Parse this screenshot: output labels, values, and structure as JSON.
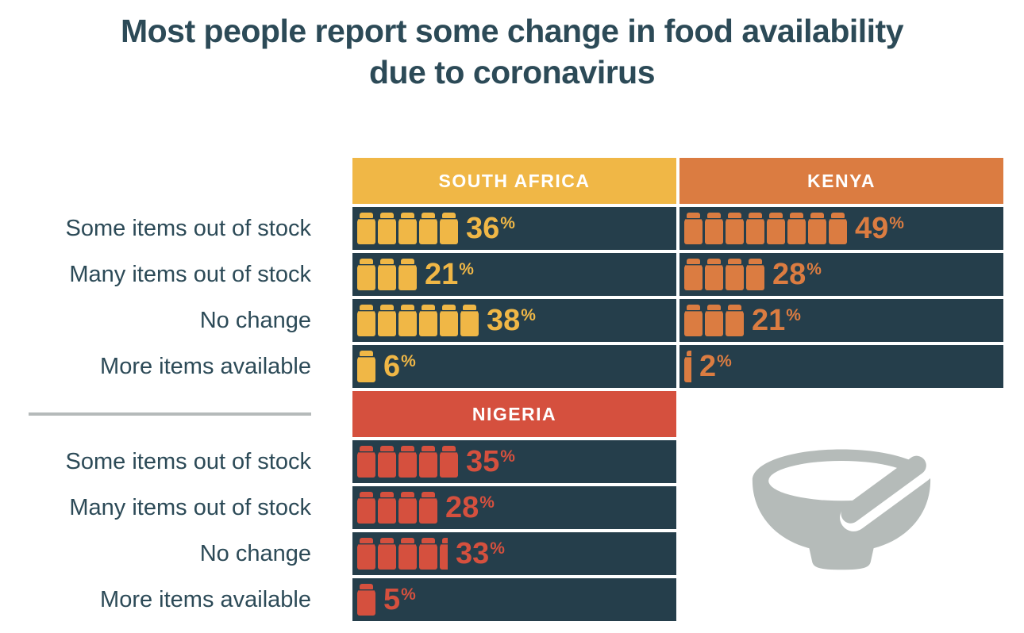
{
  "title": {
    "line1": "Most people report some change in food availability",
    "line2": "due to coronavirus"
  },
  "row_labels": [
    "Some items out of stock",
    "Many items out of stock",
    "No change",
    "More items available"
  ],
  "percent_sign": "%",
  "colors": {
    "yellow": "#F0B746",
    "orange": "#DB7C41",
    "red": "#D5503E",
    "bar_background": "#253E4B",
    "text_dark": "#2C4A57",
    "divider_gray": "#B5BABA",
    "bowl_gray": "#B5BBB9",
    "header_text": "#FFFFFF"
  },
  "panels": [
    {
      "country": "SOUTH AFRICA",
      "color_key": "yellow",
      "values": [
        36,
        21,
        38,
        6
      ],
      "icon_counts": [
        5,
        3,
        6,
        1
      ]
    },
    {
      "country": "KENYA",
      "color_key": "orange",
      "values": [
        49,
        28,
        21,
        2
      ],
      "icon_counts": [
        8,
        4,
        3,
        0.4
      ]
    },
    {
      "country": "NIGERIA",
      "color_key": "red",
      "values": [
        35,
        28,
        33,
        5
      ],
      "icon_counts": [
        5,
        4,
        4.45,
        1
      ]
    }
  ],
  "icons": {
    "pictogram_unit": "food-jar-icon",
    "footer_graphic": "bowl-with-spoon-icon"
  },
  "chart_data": {
    "type": "bar",
    "subtype": "pictogram",
    "title": "Most people report some change in food availability due to coronavirus",
    "categories": [
      "Some items out of stock",
      "Many items out of stock",
      "No change",
      "More items available"
    ],
    "series": [
      {
        "name": "South Africa",
        "values": [
          36,
          21,
          38,
          6
        ],
        "color": "#F0B746"
      },
      {
        "name": "Kenya",
        "values": [
          49,
          28,
          21,
          2
        ],
        "color": "#DB7C41"
      },
      {
        "name": "Nigeria",
        "values": [
          35,
          28,
          33,
          5
        ],
        "color": "#D5503E"
      }
    ],
    "unit": "%",
    "legend_position": "panel-headers",
    "grid": false,
    "value_labels_shown": true
  }
}
